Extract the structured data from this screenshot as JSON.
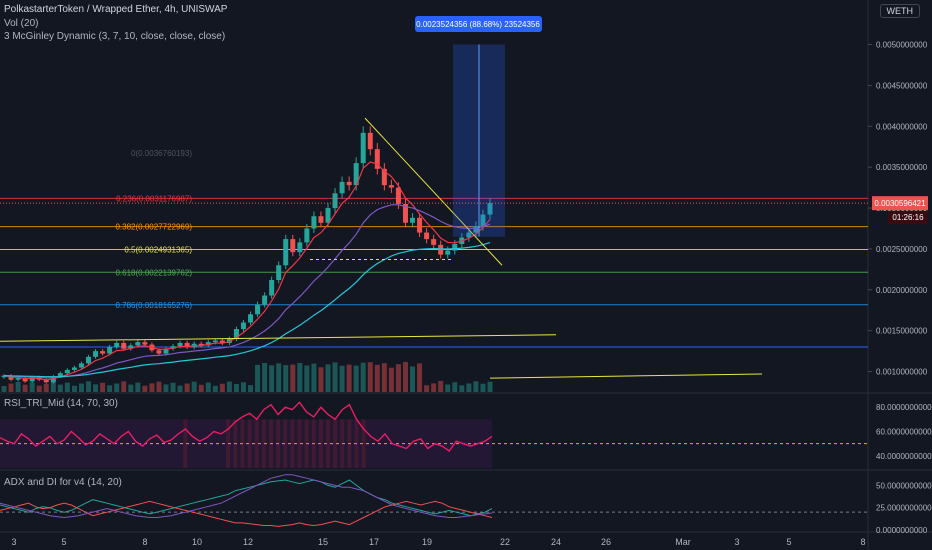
{
  "header": {
    "title": "PolkastarterToken / Wrapped Ether, 4h, UNISWAP",
    "indicator_1": "Vol (20)",
    "indicator_2": "3 McGinley Dynamic (3, 7, 10, close, close, close)"
  },
  "symbol_badge": "WETH",
  "colors": {
    "background": "#131722",
    "up": "#26a69a",
    "down": "#ef5350",
    "fib_red": "#f23645",
    "fib_orange": "#ff9800",
    "fib_yellow": "#e8e83a",
    "fib_green": "#4caf50",
    "fib_blue": "#2962ff",
    "rsi": "#e91e63",
    "accent_label": "#2962ff"
  },
  "measure_label": "0.0023524356 (88.68%) 23524356",
  "price_tag": "0.0030596421",
  "countdown": "01:26:16",
  "fib_levels": [
    {
      "ratio": "0",
      "label": "0(0.0036760193)",
      "price": 0.0036760193,
      "color": "#787b86"
    },
    {
      "ratio": "0.236",
      "label": "0.236(0.0031176987)",
      "price": 0.0031176987,
      "color": "#f23645"
    },
    {
      "ratio": "0.382",
      "label": "0.382(0.0027722969)",
      "price": 0.0027722969,
      "color": "#ff9800"
    },
    {
      "ratio": "0.5",
      "label": "0.5(0.0024931365)",
      "price": 0.0024931365,
      "color": "#e8e83a"
    },
    {
      "ratio": "0.618",
      "label": "0.618(0.0022139762)",
      "price": 0.0022139762,
      "color": "#4caf50"
    },
    {
      "ratio": "0.786",
      "label": "0.786(0.0018165276)",
      "price": 0.0018165276,
      "color": "#2196f3"
    }
  ],
  "rsi_panel_title": "RSI_TRI_Mid (14, 70, 30)",
  "adx_panel_title": "ADX and DI for v4 (14, 20)",
  "chart_data": [
    {
      "type": "candlestick",
      "title": "PolkastarterToken / Wrapped Ether, 4h, UNISWAP",
      "y_ticks": [
        "0.0050000000",
        "0.0045000000",
        "0.0040000000",
        "0.0035000000",
        "0.0030000000",
        "0.0025000000",
        "0.0020000000",
        "0.0015000000",
        "0.0010000000"
      ],
      "ylim": [
        0.00075,
        0.0053
      ],
      "x_ticks": [
        "3",
        "5",
        "8",
        "10",
        "12",
        "15",
        "17",
        "19",
        "22",
        "24",
        "26",
        "Mar",
        "3",
        "5",
        "8"
      ],
      "close_path": [
        0.00095,
        0.0009,
        0.00092,
        0.00088,
        0.00093,
        0.0009,
        0.00087,
        0.00094,
        0.00098,
        0.00102,
        0.00105,
        0.0011,
        0.00118,
        0.00125,
        0.00122,
        0.0013,
        0.00135,
        0.00128,
        0.00132,
        0.00136,
        0.00133,
        0.00126,
        0.00122,
        0.00128,
        0.00131,
        0.00135,
        0.0013,
        0.00134,
        0.00132,
        0.00136,
        0.00138,
        0.00135,
        0.0014,
        0.00152,
        0.0016,
        0.0017,
        0.00182,
        0.00193,
        0.00212,
        0.0023,
        0.00262,
        0.00246,
        0.00258,
        0.00275,
        0.0029,
        0.00282,
        0.003,
        0.00318,
        0.00332,
        0.00328,
        0.00355,
        0.00392,
        0.00372,
        0.00348,
        0.00328,
        0.00325,
        0.00305,
        0.00282,
        0.00288,
        0.0027,
        0.00262,
        0.00255,
        0.00243,
        0.00248,
        0.00256,
        0.00264,
        0.0027,
        0.00278,
        0.00292,
        0.00306
      ],
      "reference_lines": [
        {
          "name": "fib 0.236",
          "value": 0.0031176987
        },
        {
          "name": "fib 0.382",
          "value": 0.0027722969
        },
        {
          "name": "fib 0.5",
          "value": 0.0024931365
        },
        {
          "name": "fib 0.618",
          "value": 0.0022139762
        },
        {
          "name": "fib 0.786",
          "value": 0.0018165276
        },
        {
          "name": "horizontal",
          "value": 0.0013
        }
      ],
      "measure": {
        "from": 0.00265,
        "to": 0.005,
        "label": "0.0023524356 (88.68%) 23524356"
      }
    },
    {
      "type": "line",
      "title": "RSI_TRI_Mid (14, 70, 30)",
      "y_ticks": [
        "80.0000000000",
        "60.0000000000",
        "40.0000000000"
      ],
      "ylim": [
        30,
        90
      ],
      "values": [
        55,
        52,
        50,
        58,
        54,
        48,
        52,
        56,
        50,
        53,
        60,
        55,
        49,
        52,
        58,
        54,
        50,
        56,
        60,
        52,
        48,
        54,
        57,
        51,
        53,
        58,
        62,
        56,
        52,
        55,
        60,
        58,
        62,
        68,
        72,
        75,
        70,
        78,
        82,
        74,
        80,
        78,
        84,
        76,
        72,
        80,
        74,
        70,
        78,
        82,
        70,
        62,
        56,
        52,
        58,
        50,
        48,
        46,
        52,
        54,
        46,
        50,
        48,
        44,
        52,
        50,
        48,
        50,
        52,
        56
      ]
    },
    {
      "type": "line",
      "title": "ADX and DI for v4 (14, 20)",
      "y_ticks": [
        "50.0000000000",
        "25.0000000000",
        "0.0000000000"
      ],
      "ylim": [
        0,
        65
      ],
      "series": [
        {
          "values": [
            28,
            26,
            24,
            22,
            20,
            24,
            26,
            25,
            22,
            20,
            22,
            26,
            30,
            34,
            32,
            30,
            28,
            26,
            24,
            22,
            20,
            18,
            20,
            22,
            24,
            26,
            28,
            30,
            32,
            34,
            36,
            38,
            40,
            44,
            46,
            48,
            50,
            52,
            54,
            55,
            56,
            54,
            52,
            54,
            56,
            54,
            50,
            48,
            52,
            56,
            50,
            44,
            40,
            36,
            34,
            30,
            28,
            26,
            24,
            22,
            20,
            18,
            20,
            22,
            20,
            18,
            16,
            18,
            20,
            24
          ]
        },
        {
          "values": [
            22,
            24,
            26,
            28,
            30,
            26,
            24,
            25,
            28,
            30,
            28,
            24,
            20,
            16,
            18,
            20,
            22,
            24,
            26,
            28,
            30,
            32,
            30,
            28,
            26,
            24,
            22,
            20,
            18,
            16,
            14,
            12,
            10,
            8,
            8,
            7,
            6,
            5,
            5,
            4,
            5,
            6,
            8,
            6,
            5,
            6,
            8,
            10,
            8,
            6,
            10,
            14,
            18,
            22,
            26,
            28,
            30,
            32,
            30,
            28,
            30,
            32,
            30,
            26,
            24,
            22,
            20,
            18,
            16,
            14
          ]
        },
        {
          "values": [
            30,
            28,
            26,
            24,
            22,
            20,
            18,
            16,
            15,
            14,
            15,
            16,
            18,
            20,
            22,
            24,
            22,
            20,
            18,
            16,
            15,
            14,
            14,
            15,
            16,
            18,
            20,
            22,
            24,
            26,
            28,
            30,
            34,
            38,
            42,
            46,
            50,
            54,
            58,
            60,
            62,
            62,
            60,
            58,
            56,
            54,
            52,
            50,
            48,
            48,
            46,
            44,
            40,
            36,
            32,
            28,
            26,
            24,
            22,
            20,
            18,
            16,
            15,
            14,
            14,
            15,
            16,
            17,
            18,
            19
          ]
        }
      ]
    }
  ]
}
